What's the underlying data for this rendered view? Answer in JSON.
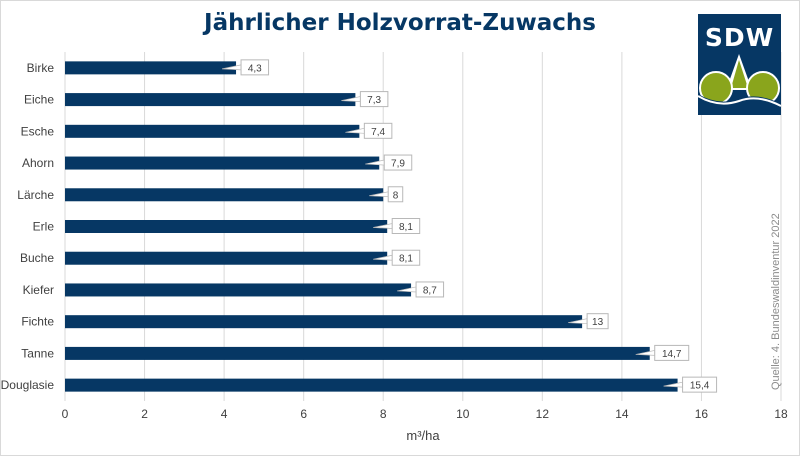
{
  "logo": {
    "text": "SDW",
    "colors": {
      "blue": "#063764",
      "green": "#8aa51c",
      "white": "#ffffff"
    }
  },
  "source": "Quelle: 4. Bundeswaldinventur 2022",
  "chart_data": {
    "type": "bar",
    "orientation": "horizontal",
    "title": "Jährlicher Holzvorrat-Zuwachs",
    "xlabel": "m³/ha",
    "ylabel": "",
    "xlim": [
      0,
      18
    ],
    "xticks": [
      0,
      2,
      4,
      6,
      8,
      10,
      12,
      14,
      16,
      18
    ],
    "grid": true,
    "legend": "none",
    "bar_color": "#063764",
    "categories": [
      "Birke",
      "Eiche",
      "Esche",
      "Ahorn",
      "Lärche",
      "Erle",
      "Buche",
      "Kiefer",
      "Fichte",
      "Tanne",
      "Douglasie"
    ],
    "values": [
      4.3,
      7.3,
      7.4,
      7.9,
      8,
      8.1,
      8.1,
      8.7,
      13,
      14.7,
      15.4
    ],
    "value_labels": [
      "4,3",
      "7,3",
      "7,4",
      "7,9",
      "8",
      "8,1",
      "8,1",
      "8,7",
      "13",
      "14,7",
      "15,4"
    ]
  }
}
